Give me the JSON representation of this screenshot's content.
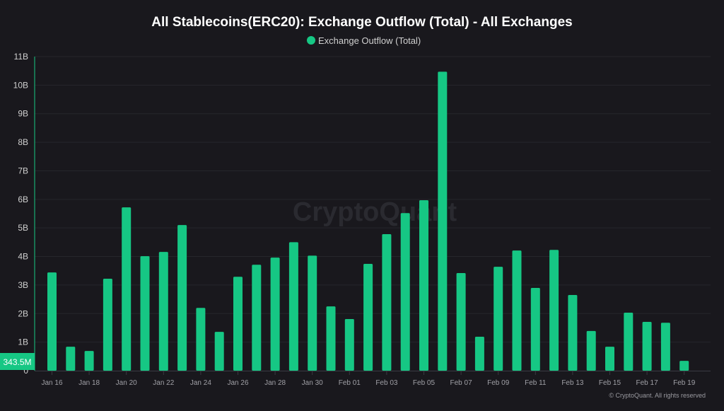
{
  "chart_data": {
    "type": "bar",
    "title": "All Stablecoins(ERC20): Exchange Outflow (Total) - All Exchanges",
    "legend": {
      "position": "top-center",
      "entries": [
        "Exchange Outflow (Total)"
      ]
    },
    "xlabel": "",
    "ylabel": "",
    "ylim": [
      0,
      11000000000
    ],
    "yticks": [
      "0",
      "1B",
      "2B",
      "3B",
      "4B",
      "5B",
      "6B",
      "7B",
      "8B",
      "9B",
      "10B",
      "11B"
    ],
    "grid": true,
    "categories": [
      "Jan 16",
      "Jan 17",
      "Jan 18",
      "Jan 19",
      "Jan 20",
      "Jan 21",
      "Jan 22",
      "Jan 23",
      "Jan 24",
      "Jan 25",
      "Jan 26",
      "Jan 27",
      "Jan 28",
      "Jan 29",
      "Jan 30",
      "Jan 31",
      "Feb 01",
      "Feb 02",
      "Feb 03",
      "Feb 04",
      "Feb 05",
      "Feb 06",
      "Feb 07",
      "Feb 08",
      "Feb 09",
      "Feb 10",
      "Feb 11",
      "Feb 12",
      "Feb 13",
      "Feb 14",
      "Feb 15",
      "Feb 16",
      "Feb 17",
      "Feb 18",
      "Feb 19"
    ],
    "xtick_labels": [
      "Jan 16",
      "Jan 18",
      "Jan 20",
      "Jan 22",
      "Jan 24",
      "Jan 26",
      "Jan 28",
      "Jan 30",
      "Feb 01",
      "Feb 03",
      "Feb 05",
      "Feb 07",
      "Feb 09",
      "Feb 11",
      "Feb 13",
      "Feb 15",
      "Feb 17",
      "Feb 19"
    ],
    "series": [
      {
        "name": "Exchange Outflow (Total)",
        "color": "#16c784",
        "values": [
          3.44,
          0.84,
          0.69,
          3.22,
          5.72,
          4.01,
          4.16,
          5.1,
          2.2,
          1.36,
          3.29,
          3.71,
          3.96,
          4.5,
          4.03,
          2.25,
          1.81,
          3.74,
          4.78,
          5.52,
          5.97,
          10.47,
          3.42,
          1.19,
          3.64,
          4.21,
          2.9,
          4.23,
          2.65,
          1.39,
          0.84,
          2.03,
          1.71,
          1.68,
          0.3435
        ],
        "unit": "B"
      }
    ],
    "last_value_label": "343.5M"
  },
  "watermark": "CryptoQuant",
  "copyright": "© CryptoQuant. All rights reserved",
  "colors": {
    "background": "#19181d",
    "bar": "#16c784",
    "grid": "#2a2a30"
  }
}
